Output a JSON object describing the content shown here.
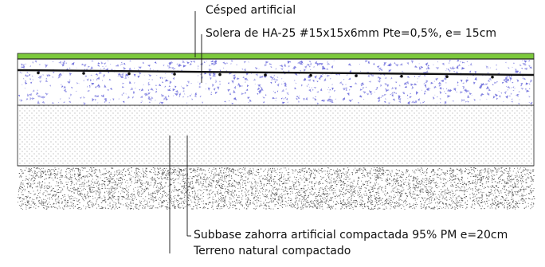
{
  "labels": {
    "cesped": "Césped artificial",
    "solera": "Solera de HA-25 #15x15x6mm Pte=0,5%, e= 15cm",
    "subbase": "Subbase zahorra artificial compactada 95% PM e=20cm",
    "terreno": "Terreno natural compactado"
  },
  "colors": {
    "grass": "#7cc93c",
    "concrete_aggregate": "#6f6fdc",
    "rebar": "#111111",
    "outline": "#222222"
  },
  "layers": [
    {
      "id": "cesped-layer",
      "material": "grass"
    },
    {
      "id": "solera-layer",
      "material": "concrete"
    },
    {
      "id": "subbase-layer",
      "material": "gravel-fine"
    },
    {
      "id": "terreno-layer",
      "material": "soil"
    }
  ]
}
